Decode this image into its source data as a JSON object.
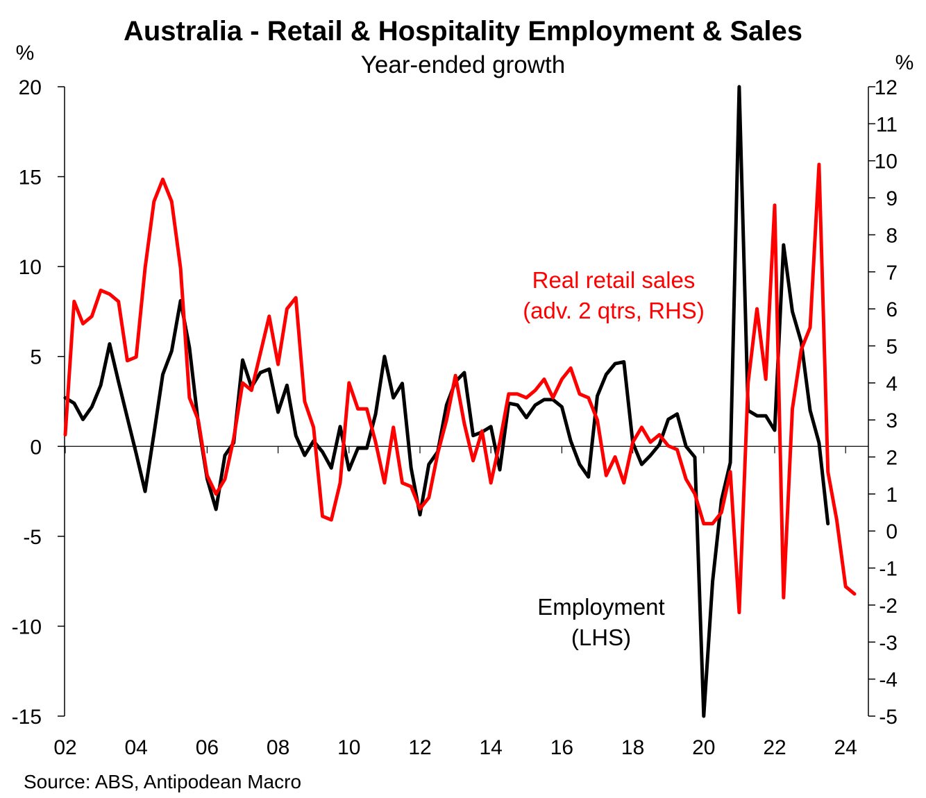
{
  "chart_data": {
    "type": "line",
    "title": "Australia - Retail & Hospitality Employment & Sales",
    "subtitle": "Year-ended growth",
    "ylabel_left": "%",
    "ylabel_right": "%",
    "ylim_left": [
      -15,
      20
    ],
    "ylim_right": [
      -5,
      12
    ],
    "yticks_left": [
      "20",
      "15",
      "10",
      "5",
      "0",
      "-5",
      "-10",
      "-15"
    ],
    "yticks_right": [
      "12",
      "11",
      "10",
      "9",
      "8",
      "7",
      "6",
      "5",
      "4",
      "3",
      "2",
      "1",
      "0",
      "-1",
      "-2",
      "-3",
      "-4",
      "-5"
    ],
    "xticks": [
      "02",
      "04",
      "06",
      "08",
      "10",
      "12",
      "14",
      "16",
      "18",
      "20",
      "22",
      "24"
    ],
    "source": "Source: ABS, Antipodean Macro",
    "colors": {
      "employment": "#000000",
      "sales": "#ff0000",
      "axis": "#000000"
    },
    "series": [
      {
        "name": "Employment (LHS)",
        "label_lines": [
          "Employment",
          "(LHS)"
        ],
        "axis": "left",
        "color": "#000000",
        "start_year": 2002,
        "values": [
          2.7,
          2.4,
          1.5,
          2.2,
          3.4,
          5.7,
          3.6,
          1.6,
          -0.4,
          -2.5,
          0.7,
          4.0,
          5.3,
          8.1,
          5.5,
          1.3,
          -1.8,
          -3.5,
          -0.5,
          0.2,
          4.8,
          3.3,
          4.1,
          4.3,
          1.9,
          3.4,
          0.6,
          -0.5,
          0.3,
          -0.3,
          -1.2,
          1.1,
          -1.3,
          -0.1,
          -0.1,
          1.8,
          5.0,
          2.7,
          3.5,
          -1.2,
          -3.8,
          -1.0,
          -0.3,
          2.3,
          3.6,
          4.1,
          0.6,
          0.8,
          1.1,
          -1.3,
          2.4,
          2.3,
          1.6,
          2.3,
          2.6,
          2.6,
          2.2,
          0.3,
          -1.0,
          -1.7,
          2.8,
          4.0,
          4.6,
          4.7,
          0.2,
          -1.0,
          -0.5,
          0.1,
          1.5,
          1.8,
          0.0,
          -0.6,
          -15.2,
          -7.5,
          -3.0,
          -0.9,
          20.0,
          2.0,
          1.7,
          1.7,
          0.9,
          11.2,
          7.5,
          5.8,
          2.0,
          0.2,
          -4.3
        ]
      },
      {
        "name": "Real retail sales (adv. 2 qtrs, RHS)",
        "label_lines": [
          "Real retail sales",
          "(adv. 2 qtrs, RHS)"
        ],
        "axis": "right",
        "color": "#ff0000",
        "start_year": 2002,
        "values": [
          2.6,
          6.2,
          5.6,
          5.8,
          6.5,
          6.4,
          6.2,
          4.6,
          4.7,
          7.1,
          8.9,
          9.5,
          8.9,
          7.1,
          3.6,
          3.0,
          1.5,
          1.0,
          1.4,
          2.5,
          4.0,
          3.8,
          4.8,
          5.8,
          4.5,
          6.0,
          6.3,
          3.5,
          2.8,
          0.4,
          0.3,
          1.3,
          4.0,
          3.3,
          3.3,
          2.4,
          1.3,
          2.8,
          1.3,
          1.2,
          0.6,
          0.9,
          2.1,
          3.0,
          4.2,
          2.9,
          1.9,
          2.7,
          1.3,
          2.4,
          3.7,
          3.7,
          3.6,
          3.8,
          4.1,
          3.6,
          4.1,
          4.4,
          3.7,
          3.6,
          3.0,
          1.5,
          2.0,
          1.3,
          2.4,
          2.8,
          2.4,
          2.6,
          2.3,
          2.2,
          1.4,
          1.0,
          0.2,
          0.2,
          0.5,
          1.6,
          -2.2,
          4.0,
          6.0,
          4.1,
          8.8,
          -1.8,
          3.3,
          4.9,
          5.5,
          9.9,
          1.6,
          0.3,
          -1.5,
          -1.7
        ]
      }
    ]
  }
}
